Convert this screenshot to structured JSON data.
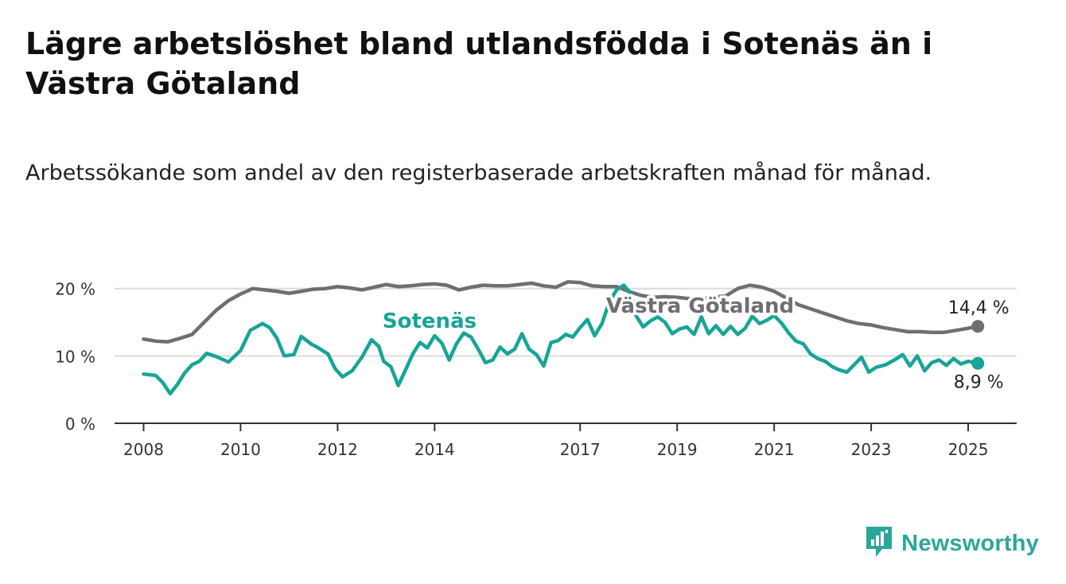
{
  "title": "Lägre arbetslöshet bland utlandsfödda i Sotenäs än i Västra Götaland",
  "subtitle": "Arbetssökande som andel av den registerbaserade arbetskraften månad för månad.",
  "brand": {
    "name": "Newsworthy",
    "logo_icon": "bar-chart-badge-icon"
  },
  "colors": {
    "sotenas": "#16a596",
    "vastra_gotaland": "#6e6e73",
    "grid": "#dcdcdc",
    "axis": "#333333"
  },
  "chart_data": {
    "type": "line",
    "title": "Lägre arbetslöshet bland utlandsfödda i Sotenäs än i Västra Götaland",
    "ylim": [
      0,
      21.5
    ],
    "xlim": [
      2007.5,
      2026.0
    ],
    "yticks": [
      0,
      10,
      20
    ],
    "ytick_labels": [
      "0 %",
      "10 %",
      "20 %"
    ],
    "xticks": [
      2008,
      2010,
      2012,
      2014,
      2017,
      2019,
      2021,
      2023,
      2025
    ],
    "xtick_labels": [
      "2008",
      "2010",
      "2012",
      "2014",
      "2017",
      "2019",
      "2021",
      "2023",
      "2025"
    ],
    "grid": true,
    "legend": "direct labels on lines",
    "series": [
      {
        "name": "Västra Götaland",
        "end_label": "14,4 %",
        "points": [
          [
            2008.0,
            12.5
          ],
          [
            2008.25,
            12.2
          ],
          [
            2008.5,
            12.1
          ],
          [
            2008.75,
            12.6
          ],
          [
            2009.0,
            13.2
          ],
          [
            2009.25,
            15.0
          ],
          [
            2009.5,
            16.8
          ],
          [
            2009.75,
            18.2
          ],
          [
            2010.0,
            19.2
          ],
          [
            2010.25,
            20.0
          ],
          [
            2010.5,
            19.8
          ],
          [
            2010.75,
            19.6
          ],
          [
            2011.0,
            19.3
          ],
          [
            2011.25,
            19.6
          ],
          [
            2011.5,
            19.9
          ],
          [
            2011.75,
            20.0
          ],
          [
            2012.0,
            20.3
          ],
          [
            2012.25,
            20.1
          ],
          [
            2012.5,
            19.8
          ],
          [
            2012.75,
            20.2
          ],
          [
            2013.0,
            20.6
          ],
          [
            2013.25,
            20.3
          ],
          [
            2013.5,
            20.4
          ],
          [
            2013.75,
            20.6
          ],
          [
            2014.0,
            20.7
          ],
          [
            2014.25,
            20.5
          ],
          [
            2014.5,
            19.8
          ],
          [
            2014.75,
            20.2
          ],
          [
            2015.0,
            20.5
          ],
          [
            2015.25,
            20.4
          ],
          [
            2015.5,
            20.4
          ],
          [
            2015.75,
            20.6
          ],
          [
            2016.0,
            20.8
          ],
          [
            2016.25,
            20.4
          ],
          [
            2016.5,
            20.2
          ],
          [
            2016.75,
            21.0
          ],
          [
            2017.0,
            20.9
          ],
          [
            2017.25,
            20.4
          ],
          [
            2017.5,
            20.3
          ],
          [
            2017.75,
            20.3
          ],
          [
            2018.0,
            19.6
          ],
          [
            2018.25,
            19.0
          ],
          [
            2018.5,
            18.7
          ],
          [
            2018.75,
            18.8
          ],
          [
            2019.0,
            18.7
          ],
          [
            2019.25,
            18.5
          ],
          [
            2019.5,
            18.5
          ],
          [
            2019.75,
            18.7
          ],
          [
            2020.0,
            18.9
          ],
          [
            2020.25,
            20.0
          ],
          [
            2020.5,
            20.5
          ],
          [
            2020.75,
            20.2
          ],
          [
            2021.0,
            19.6
          ],
          [
            2021.25,
            18.6
          ],
          [
            2021.5,
            17.6
          ],
          [
            2021.75,
            17.0
          ],
          [
            2022.0,
            16.4
          ],
          [
            2022.25,
            15.8
          ],
          [
            2022.5,
            15.2
          ],
          [
            2022.75,
            14.8
          ],
          [
            2023.0,
            14.6
          ],
          [
            2023.25,
            14.2
          ],
          [
            2023.5,
            13.9
          ],
          [
            2023.75,
            13.6
          ],
          [
            2024.0,
            13.6
          ],
          [
            2024.25,
            13.5
          ],
          [
            2024.5,
            13.5
          ],
          [
            2024.75,
            13.8
          ],
          [
            2025.0,
            14.1
          ],
          [
            2025.2,
            14.4
          ]
        ]
      },
      {
        "name": "Sotenäs",
        "end_label": "8,9 %",
        "points": [
          [
            2008.0,
            7.3
          ],
          [
            2008.25,
            7.1
          ],
          [
            2008.4,
            6.0
          ],
          [
            2008.55,
            4.4
          ],
          [
            2008.7,
            5.8
          ],
          [
            2008.85,
            7.5
          ],
          [
            2009.0,
            8.7
          ],
          [
            2009.15,
            9.2
          ],
          [
            2009.3,
            10.4
          ],
          [
            2009.5,
            9.9
          ],
          [
            2009.75,
            9.1
          ],
          [
            2010.0,
            10.8
          ],
          [
            2010.2,
            13.8
          ],
          [
            2010.45,
            14.8
          ],
          [
            2010.6,
            14.2
          ],
          [
            2010.75,
            12.6
          ],
          [
            2010.9,
            10.0
          ],
          [
            2011.1,
            10.2
          ],
          [
            2011.25,
            12.9
          ],
          [
            2011.45,
            11.8
          ],
          [
            2011.6,
            11.2
          ],
          [
            2011.8,
            10.3
          ],
          [
            2011.95,
            8.1
          ],
          [
            2012.1,
            6.9
          ],
          [
            2012.3,
            7.8
          ],
          [
            2012.5,
            9.8
          ],
          [
            2012.7,
            12.4
          ],
          [
            2012.85,
            11.4
          ],
          [
            2012.95,
            9.2
          ],
          [
            2013.1,
            8.4
          ],
          [
            2013.25,
            5.6
          ],
          [
            2013.4,
            7.9
          ],
          [
            2013.55,
            10.3
          ],
          [
            2013.7,
            12.0
          ],
          [
            2013.85,
            11.2
          ],
          [
            2014.0,
            13.0
          ],
          [
            2014.15,
            11.9
          ],
          [
            2014.3,
            9.4
          ],
          [
            2014.45,
            11.8
          ],
          [
            2014.6,
            13.4
          ],
          [
            2014.75,
            12.8
          ],
          [
            2014.9,
            11.0
          ],
          [
            2015.05,
            9.0
          ],
          [
            2015.2,
            9.4
          ],
          [
            2015.35,
            11.3
          ],
          [
            2015.5,
            10.3
          ],
          [
            2015.65,
            11.0
          ],
          [
            2015.8,
            13.3
          ],
          [
            2015.95,
            11.0
          ],
          [
            2016.1,
            10.2
          ],
          [
            2016.25,
            8.5
          ],
          [
            2016.4,
            12.0
          ],
          [
            2016.55,
            12.3
          ],
          [
            2016.7,
            13.2
          ],
          [
            2016.85,
            12.8
          ],
          [
            2017.0,
            14.2
          ],
          [
            2017.15,
            15.4
          ],
          [
            2017.3,
            13.0
          ],
          [
            2017.45,
            14.8
          ],
          [
            2017.6,
            18.0
          ],
          [
            2017.75,
            19.8
          ],
          [
            2017.9,
            20.5
          ],
          [
            2018.05,
            19.2
          ],
          [
            2018.15,
            16.0
          ],
          [
            2018.3,
            14.3
          ],
          [
            2018.45,
            15.2
          ],
          [
            2018.6,
            15.8
          ],
          [
            2018.75,
            15.0
          ],
          [
            2018.9,
            13.3
          ],
          [
            2019.05,
            14.0
          ],
          [
            2019.2,
            14.3
          ],
          [
            2019.35,
            13.2
          ],
          [
            2019.5,
            15.8
          ],
          [
            2019.65,
            13.3
          ],
          [
            2019.8,
            14.5
          ],
          [
            2019.95,
            13.2
          ],
          [
            2020.1,
            14.4
          ],
          [
            2020.25,
            13.2
          ],
          [
            2020.4,
            14.1
          ],
          [
            2020.55,
            15.9
          ],
          [
            2020.7,
            14.8
          ],
          [
            2020.85,
            15.3
          ],
          [
            2021.0,
            16.0
          ],
          [
            2021.15,
            14.9
          ],
          [
            2021.3,
            13.4
          ],
          [
            2021.45,
            12.2
          ],
          [
            2021.6,
            11.8
          ],
          [
            2021.75,
            10.3
          ],
          [
            2021.9,
            9.6
          ],
          [
            2022.05,
            9.2
          ],
          [
            2022.2,
            8.4
          ],
          [
            2022.35,
            7.9
          ],
          [
            2022.5,
            7.6
          ],
          [
            2022.65,
            8.7
          ],
          [
            2022.8,
            9.8
          ],
          [
            2022.95,
            7.6
          ],
          [
            2023.1,
            8.3
          ],
          [
            2023.3,
            8.7
          ],
          [
            2023.5,
            9.5
          ],
          [
            2023.65,
            10.2
          ],
          [
            2023.8,
            8.5
          ],
          [
            2023.95,
            10.0
          ],
          [
            2024.1,
            7.8
          ],
          [
            2024.25,
            9.0
          ],
          [
            2024.4,
            9.4
          ],
          [
            2024.55,
            8.6
          ],
          [
            2024.7,
            9.6
          ],
          [
            2024.85,
            8.8
          ],
          [
            2025.0,
            9.2
          ],
          [
            2025.2,
            8.9
          ]
        ]
      }
    ]
  }
}
